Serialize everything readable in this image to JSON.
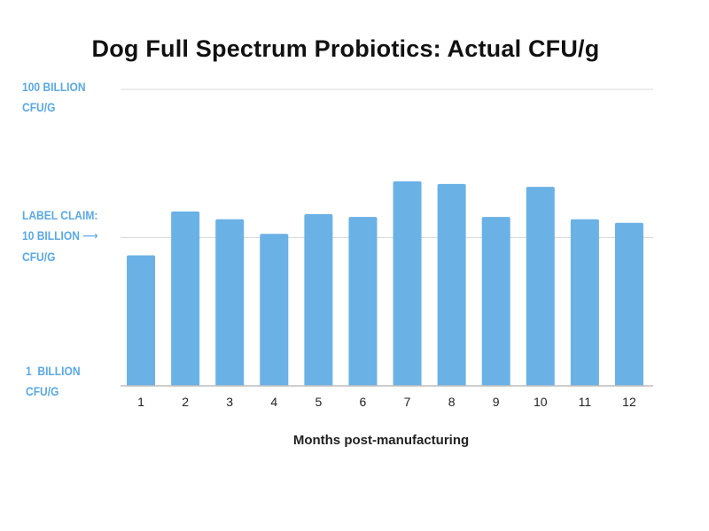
{
  "chart_data": {
    "type": "bar",
    "title": "Dog Full Spectrum Probiotics: Actual CFU/g",
    "xlabel": "Months post-manufacturing",
    "ylabel": "",
    "y_scale": "log",
    "ylim": [
      1,
      100
    ],
    "grid": true,
    "categories": [
      "1",
      "2",
      "3",
      "4",
      "5",
      "6",
      "7",
      "8",
      "9",
      "10",
      "11",
      "12"
    ],
    "values": [
      7.6,
      15.0,
      13.3,
      10.6,
      14.4,
      13.8,
      24.0,
      23.0,
      13.8,
      22.0,
      13.3,
      12.6
    ],
    "color": "#6ab1e6",
    "y_tick_labels": {
      "top": [
        "100 BILLION",
        "CFU/G"
      ],
      "mid": [
        "LABEL CLAIM:",
        "10 BILLION",
        "CFU/G"
      ],
      "bottom": [
        "1  BILLION",
        "CFU/G"
      ]
    }
  }
}
